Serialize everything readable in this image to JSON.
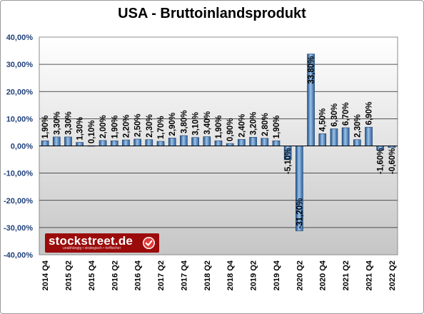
{
  "chart_data": {
    "type": "bar",
    "title": "USA - Bruttoinlandsprodukt",
    "categories": [
      "2014 Q4",
      "",
      "2015 Q2",
      "",
      "2015 Q4",
      "",
      "2016 Q2",
      "",
      "2016 Q4",
      "",
      "2017 Q2",
      "",
      "2017 Q4",
      "",
      "2018 Q2",
      "",
      "2018 Q4",
      "",
      "2019 Q2",
      "",
      "2019 Q4",
      "",
      "2020 Q2",
      "",
      "2020 Q4",
      "",
      "2021 Q2",
      "",
      "2021 Q4",
      "",
      "2022 Q2"
    ],
    "values": [
      1.9,
      3.3,
      3.3,
      1.3,
      0.1,
      2.0,
      1.9,
      2.2,
      2.5,
      2.3,
      1.7,
      2.9,
      3.8,
      3.1,
      3.4,
      1.9,
      0.9,
      2.4,
      3.2,
      2.8,
      1.9,
      -5.1,
      -31.2,
      33.8,
      4.5,
      6.3,
      6.7,
      2.3,
      6.9,
      -1.6,
      -0.6
    ],
    "data_labels": [
      "1,90%",
      "3,30%",
      "3,30%",
      "1,30%",
      "0,10%",
      "2,00%",
      "1,90%",
      "2,20%",
      "2,50%",
      "2,30%",
      "1,70%",
      "2,90%",
      "3,80%",
      "3,10%",
      "3,40%",
      "1,90%",
      "0,90%",
      "2,40%",
      "3,20%",
      "2,80%",
      "1,90%",
      "-5,10%",
      "-31,20%",
      "33,80%",
      "4,50%",
      "6,30%",
      "6,70%",
      "2,30%",
      "6,90%",
      "-1,60%",
      "-0,60%"
    ],
    "ylim": [
      -40,
      40
    ],
    "ytick_labels": [
      "40,00%",
      "30,00%",
      "20,00%",
      "10,00%",
      "0,00%",
      "-10,00%",
      "-20,00%",
      "-30,00%",
      "-40,00%"
    ],
    "xlabel": "",
    "ylabel": "",
    "grid": true,
    "legend": "none",
    "colors": {
      "bar_light": "#9cc3ea",
      "bar_dark": "#1f4f86",
      "plot_top": "#ffffff",
      "plot_bottom": "#c8c8c8",
      "ytick": "#1f3f7a"
    }
  },
  "logo": {
    "name": "stockstreet.de",
    "tagline": "unabhängig • strategisch • treffsicher",
    "icon": "checkmark-icon"
  }
}
